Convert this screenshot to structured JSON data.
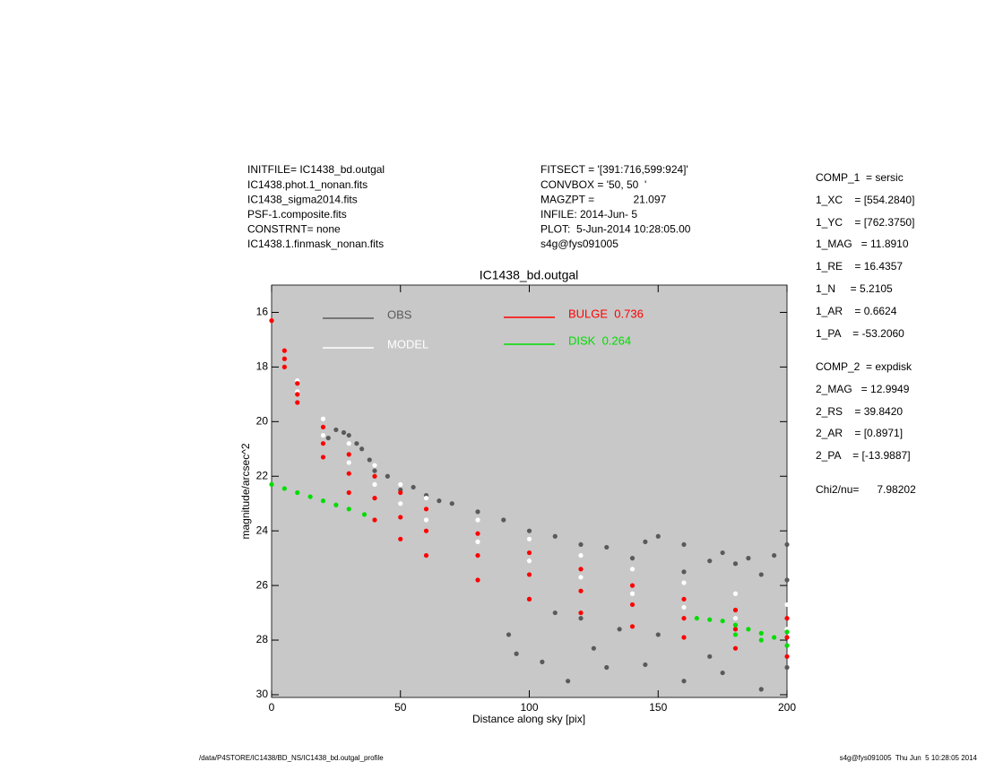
{
  "header": {
    "left": [
      "INITFILE= IC1438_bd.outgal",
      "IC1438.phot.1_nonan.fits",
      "IC1438_sigma2014.fits",
      "PSF-1.composite.fits",
      "CONSTRNT= none",
      "IC1438.1.finmask_nonan.fits"
    ],
    "middle": [
      "FITSECT = '[391:716,599:924]'",
      "CONVBOX = '50, 50  '",
      "MAGZPT =             21.097",
      "INFILE: 2014-Jun- 5",
      "PLOT:  5-Jun-2014 10:28:05.00",
      "s4g@fys091005"
    ]
  },
  "parameters": [
    "COMP_1  = sersic",
    "1_XC    = [554.2840]",
    "1_YC    = [762.3750]",
    "1_MAG   = 11.8910",
    "1_RE    = 16.4357",
    "1_N     = 5.2105",
    "1_AR    = 0.6624",
    "1_PA    = -53.2060",
    "COMP_2  = expdisk",
    "2_MAG   = 12.9949",
    "2_RS    = 39.8420",
    "2_AR    = [0.8971]",
    "2_PA    = [-13.9887]",
    "Chi2/nu=      7.98202"
  ],
  "footer": {
    "left": "/data/P4STORE/IC1438/BD_NS/IC1438_bd.outgal_profile",
    "right": "s4g@fys091005  Thu Jun  5 10:28:05 2014"
  },
  "chart_data": {
    "type": "scatter",
    "title": "IC1438_bd.outgal",
    "x_label": "Distance along sky [pix]",
    "y_label": "magnitude/arcsec^2",
    "xlim": [
      0,
      200
    ],
    "xticks": [
      0,
      50,
      100,
      150,
      200
    ],
    "ylim": [
      15,
      30.1
    ],
    "yticks": [
      16,
      18,
      20,
      22,
      24,
      26,
      28,
      30
    ],
    "y_inverted": true,
    "background": "#c8c8c8",
    "series": [
      {
        "name": "OBS",
        "color": "#5a5a5a",
        "x": [
          22,
          25,
          28,
          30,
          33,
          35,
          38,
          40,
          45,
          50,
          55,
          60,
          65,
          70,
          80,
          90,
          100,
          100,
          110,
          110,
          120,
          120,
          130,
          135,
          140,
          145,
          150,
          150,
          160,
          160,
          170,
          175,
          180,
          185,
          190,
          195,
          200,
          200,
          95,
          105,
          115,
          130,
          145,
          160,
          175,
          190,
          200,
          92,
          125,
          170
        ],
        "values": [
          20.6,
          20.3,
          20.4,
          20.5,
          20.8,
          21.0,
          21.4,
          21.8,
          22.0,
          22.5,
          22.4,
          22.7,
          22.9,
          23.0,
          23.3,
          23.6,
          24.0,
          26.5,
          24.2,
          27.0,
          24.5,
          27.2,
          24.6,
          27.6,
          25.0,
          24.4,
          24.2,
          27.8,
          25.5,
          24.5,
          25.1,
          24.8,
          25.2,
          25.0,
          25.6,
          24.9,
          24.5,
          25.8,
          28.5,
          28.8,
          29.5,
          29.0,
          28.9,
          29.5,
          29.2,
          29.8,
          29.0,
          27.8,
          28.3,
          28.6
        ]
      },
      {
        "name": "MODEL",
        "color": "#ffffff",
        "x": [
          10,
          20,
          30,
          40,
          50,
          60,
          80,
          100,
          120,
          140,
          160,
          180,
          200,
          10,
          20,
          30,
          40,
          50,
          60,
          80,
          100,
          120,
          140,
          160,
          180,
          200
        ],
        "values": [
          18.5,
          19.9,
          20.8,
          21.6,
          22.3,
          22.8,
          23.6,
          24.3,
          24.9,
          25.4,
          25.9,
          26.3,
          26.7,
          18.9,
          20.5,
          21.5,
          22.3,
          23.0,
          23.6,
          24.4,
          25.1,
          25.7,
          26.3,
          26.8,
          27.2,
          27.6
        ]
      },
      {
        "name": "BULGE  0.736",
        "color": "#ff0000",
        "x": [
          0,
          5,
          10,
          20,
          30,
          40,
          50,
          60,
          80,
          100,
          120,
          140,
          160,
          180,
          200,
          5,
          10,
          20,
          30,
          40,
          50,
          60,
          80,
          100,
          120,
          140,
          160,
          180,
          200,
          5,
          10,
          20,
          30,
          40,
          50,
          60,
          80,
          100,
          120,
          140,
          160,
          180,
          200
        ],
        "values": [
          16.3,
          17.4,
          18.6,
          20.2,
          21.2,
          22.0,
          22.6,
          23.2,
          24.1,
          24.8,
          25.4,
          26.0,
          26.5,
          26.9,
          27.2,
          17.7,
          19.0,
          20.8,
          21.9,
          22.8,
          23.5,
          24.0,
          24.9,
          25.6,
          26.2,
          26.7,
          27.2,
          27.6,
          27.9,
          18.0,
          19.3,
          21.3,
          22.6,
          23.6,
          24.3,
          24.9,
          25.8,
          26.5,
          27.0,
          27.5,
          27.9,
          28.3,
          28.6
        ]
      },
      {
        "name": "DISK  0.264",
        "color": "#00dd00",
        "x": [
          0,
          5,
          10,
          15,
          20,
          25,
          30,
          36,
          165,
          170,
          175,
          180,
          185,
          190,
          195,
          200,
          180,
          190,
          200
        ],
        "values": [
          22.3,
          22.45,
          22.6,
          22.75,
          22.9,
          23.05,
          23.2,
          23.4,
          27.2,
          27.25,
          27.3,
          27.45,
          27.6,
          27.75,
          27.9,
          28.2,
          27.8,
          28.0,
          27.7
        ]
      }
    ]
  }
}
